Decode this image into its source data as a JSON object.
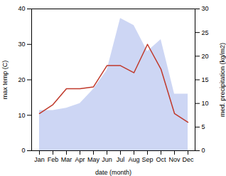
{
  "chart_data": {
    "type": "line",
    "categories": [
      "Jan",
      "Feb",
      "Mar",
      "Apr",
      "May",
      "Jun",
      "Jul",
      "Aug",
      "Sep",
      "Oct",
      "Nov",
      "Dec"
    ],
    "xlabel": "date (month)",
    "ylabel": "max temp (C)",
    "y2label": "med. precipitation (kg/m2)",
    "ylim": [
      0,
      40
    ],
    "yticks": [
      0,
      10,
      20,
      30,
      40
    ],
    "y2lim": [
      0,
      30
    ],
    "y2ticks": [
      0,
      5,
      10,
      15,
      20,
      25,
      30
    ],
    "series": [
      {
        "type": "area",
        "axis": "y2",
        "color": "#b8c4f0",
        "values": [
          8.5,
          8.5,
          9.0,
          10.0,
          13.0,
          17.0,
          28.0,
          26.5,
          21.0,
          23.5,
          12.0,
          12.0
        ]
      },
      {
        "type": "line",
        "color": "#c0392b",
        "values": [
          10.5,
          13.0,
          17.5,
          17.5,
          18.0,
          24.0,
          24.0,
          22.0,
          30.0,
          23.0,
          10.5,
          8.0
        ]
      }
    ]
  }
}
